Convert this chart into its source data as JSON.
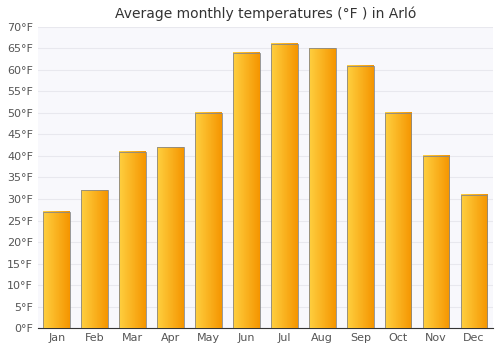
{
  "title": "Average monthly temperatures (°F ) in Arló",
  "months": [
    "Jan",
    "Feb",
    "Mar",
    "Apr",
    "May",
    "Jun",
    "Jul",
    "Aug",
    "Sep",
    "Oct",
    "Nov",
    "Dec"
  ],
  "values": [
    27,
    32,
    41,
    42,
    50,
    64,
    66,
    65,
    61,
    50,
    40,
    31
  ],
  "bar_color_left": "#FFD040",
  "bar_color_right": "#F59500",
  "bar_color_edge": "#888888",
  "ylim": [
    0,
    70
  ],
  "yticks": [
    0,
    5,
    10,
    15,
    20,
    25,
    30,
    35,
    40,
    45,
    50,
    55,
    60,
    65,
    70
  ],
  "ytick_labels": [
    "0°F",
    "5°F",
    "10°F",
    "15°F",
    "20°F",
    "25°F",
    "30°F",
    "35°F",
    "40°F",
    "45°F",
    "50°F",
    "55°F",
    "60°F",
    "65°F",
    "70°F"
  ],
  "background_color": "#ffffff",
  "plot_bg_color": "#f8f8fc",
  "grid_color": "#e8e8ee",
  "title_fontsize": 10,
  "tick_fontsize": 8,
  "fig_width": 5.0,
  "fig_height": 3.5,
  "dpi": 100
}
